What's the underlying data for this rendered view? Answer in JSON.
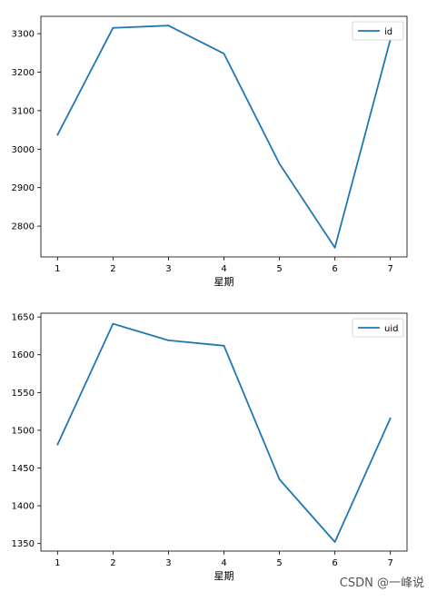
{
  "chart_data": [
    {
      "type": "line",
      "categories": [
        1,
        2,
        3,
        4,
        5,
        6,
        7
      ],
      "series": [
        {
          "name": "id",
          "values": [
            3037,
            3315,
            3321,
            3248,
            2962,
            2744,
            3285
          ]
        }
      ],
      "xlabel": "星期",
      "ylabel": "",
      "ylim": [
        2720,
        3345
      ],
      "yticks": [
        2800,
        2900,
        3000,
        3100,
        3200,
        3300
      ],
      "xticks": [
        1,
        2,
        3,
        4,
        5,
        6,
        7
      ],
      "legend": "top-right",
      "grid": false,
      "color": "#1f77b4"
    },
    {
      "type": "line",
      "categories": [
        1,
        2,
        3,
        4,
        5,
        6,
        7
      ],
      "series": [
        {
          "name": "uid",
          "values": [
            1481,
            1641,
            1619,
            1612,
            1435,
            1352,
            1516
          ]
        }
      ],
      "xlabel": "星期",
      "ylabel": "",
      "ylim": [
        1340,
        1655
      ],
      "yticks": [
        1350,
        1400,
        1450,
        1500,
        1550,
        1600,
        1650
      ],
      "xticks": [
        1,
        2,
        3,
        4,
        5,
        6,
        7
      ],
      "legend": "top-right",
      "grid": false,
      "color": "#1f77b4"
    }
  ],
  "watermark": "CSDN @一峰说"
}
